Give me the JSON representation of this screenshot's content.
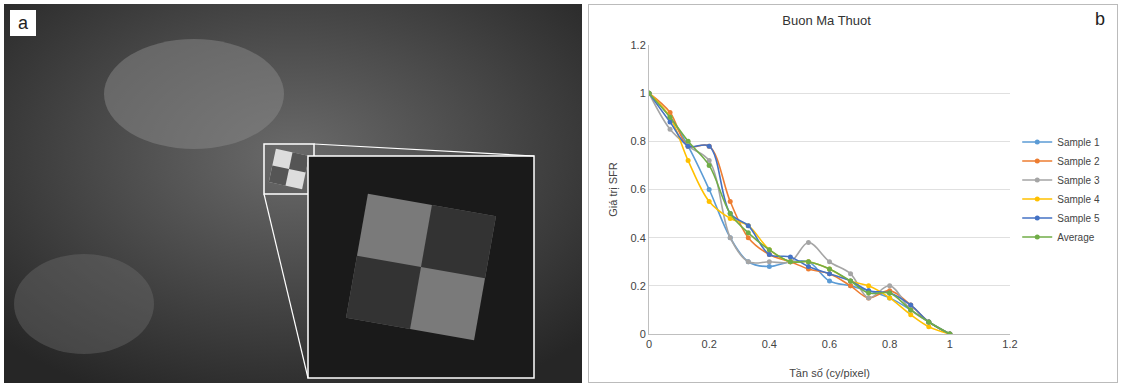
{
  "panel_labels": [
    "a",
    "b"
  ],
  "chart_data": {
    "type": "line",
    "title": "Buon Ma Thuot",
    "x_label": "Tần số (cy/pixel)",
    "y_label": "Giá trị SFR",
    "x": [
      0,
      0.07,
      0.13,
      0.2,
      0.27,
      0.33,
      0.4,
      0.47,
      0.53,
      0.6,
      0.67,
      0.73,
      0.8,
      0.87,
      0.93,
      1
    ],
    "series": [
      {
        "name": "Sample 1",
        "color": "#5b9bd5",
        "values": [
          1,
          0.9,
          0.78,
          0.6,
          0.4,
          0.3,
          0.28,
          0.3,
          0.3,
          0.22,
          0.2,
          0.18,
          0.15,
          0.1,
          0.05,
          0
        ]
      },
      {
        "name": "Sample 2",
        "color": "#ed7d31",
        "values": [
          1,
          0.92,
          0.78,
          0.78,
          0.55,
          0.4,
          0.33,
          0.3,
          0.27,
          0.25,
          0.2,
          0.15,
          0.18,
          0.12,
          0.05,
          0
        ]
      },
      {
        "name": "Sample 3",
        "color": "#a5a5a5",
        "values": [
          1,
          0.85,
          0.78,
          0.72,
          0.4,
          0.3,
          0.3,
          0.3,
          0.38,
          0.3,
          0.25,
          0.15,
          0.2,
          0.1,
          0.05,
          0
        ]
      },
      {
        "name": "Sample 4",
        "color": "#ffc000",
        "values": [
          1,
          0.9,
          0.72,
          0.55,
          0.48,
          0.45,
          0.35,
          0.3,
          0.3,
          0.27,
          0.22,
          0.2,
          0.15,
          0.08,
          0.03,
          0
        ]
      },
      {
        "name": "Sample 5",
        "color": "#4472c4",
        "values": [
          1,
          0.88,
          0.78,
          0.78,
          0.5,
          0.45,
          0.33,
          0.32,
          0.28,
          0.25,
          0.22,
          0.18,
          0.17,
          0.12,
          0.05,
          0
        ]
      },
      {
        "name": "Average",
        "color": "#70ad47",
        "values": [
          1,
          0.9,
          0.8,
          0.7,
          0.5,
          0.42,
          0.35,
          0.3,
          0.3,
          0.27,
          0.22,
          0.17,
          0.17,
          0.1,
          0.05,
          0
        ]
      }
    ],
    "xlim": [
      0,
      1.2
    ],
    "xticks": [
      0,
      0.2,
      0.4,
      0.6,
      0.8,
      1,
      1.2
    ],
    "ylim": [
      0,
      1.2
    ],
    "yticks": [
      0,
      0.2,
      0.4,
      0.6,
      0.8,
      1,
      1.2
    ],
    "grid": true,
    "legend": "right",
    "marker": "circle",
    "line_style": "smooth"
  }
}
